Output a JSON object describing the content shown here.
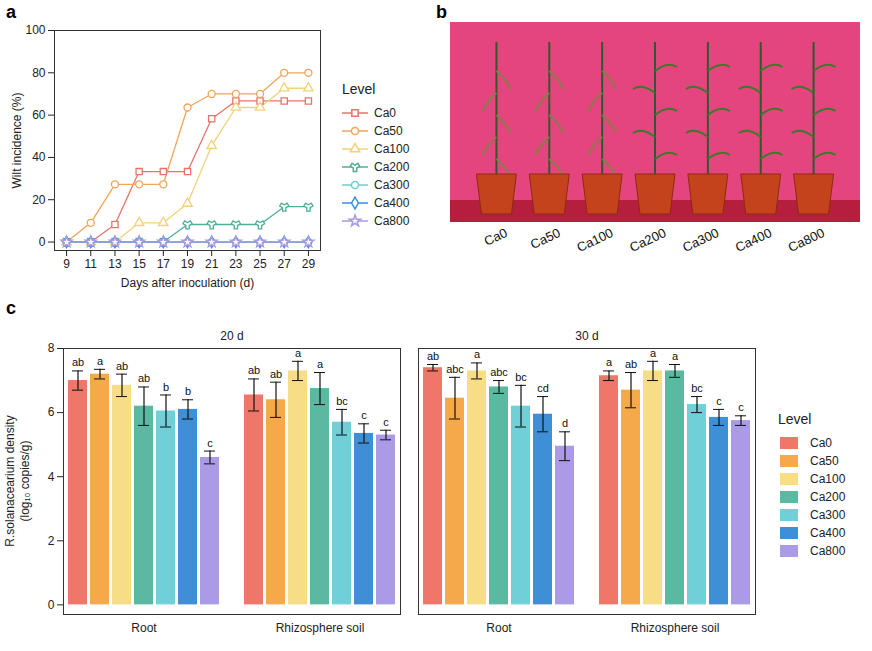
{
  "chart_data": [
    {
      "type": "line",
      "panel": "a",
      "xlabel": "Days after inoculation (d)",
      "ylabel": "Wilt incidence (%)",
      "x": [
        9,
        11,
        13,
        15,
        17,
        19,
        21,
        23,
        25,
        27,
        29
      ],
      "xlim": [
        8,
        30
      ],
      "xticks": [
        9,
        11,
        13,
        15,
        17,
        19,
        21,
        23,
        25,
        27,
        29
      ],
      "ylim": [
        -4,
        100
      ],
      "yticks": [
        0,
        20,
        40,
        60,
        80,
        100
      ],
      "legend": "right",
      "legend_title": "Level",
      "series": [
        {
          "name": "Ca0",
          "color": "#e8736b",
          "marker": "square",
          "values": [
            0,
            0,
            8.3,
            33.3,
            33.3,
            33.3,
            58.3,
            66.7,
            66.7,
            66.7,
            66.7
          ]
        },
        {
          "name": "Ca50",
          "color": "#f0a55a",
          "marker": "circle",
          "values": [
            0,
            9.1,
            27.3,
            27.3,
            27.3,
            63.6,
            70,
            70,
            70,
            80,
            80
          ]
        },
        {
          "name": "Ca100",
          "color": "#f2d27a",
          "marker": "triangle",
          "values": [
            0,
            0,
            0,
            9.1,
            9.1,
            18.2,
            45.5,
            63.6,
            63.6,
            72.7,
            72.7
          ]
        },
        {
          "name": "Ca200",
          "color": "#4fae96",
          "marker": "wye",
          "values": [
            0,
            0,
            0,
            0,
            0,
            8.3,
            8.3,
            8.3,
            8.3,
            16.7,
            16.7
          ]
        },
        {
          "name": "Ca300",
          "color": "#6fcdd3",
          "marker": "circle",
          "values": [
            0,
            0,
            0,
            0,
            0,
            0,
            0,
            0,
            0,
            0,
            0
          ]
        },
        {
          "name": "Ca400",
          "color": "#3f8fd6",
          "marker": "diamond",
          "values": [
            0,
            0,
            0,
            0,
            0,
            0,
            0,
            0,
            0,
            0,
            0
          ]
        },
        {
          "name": "Ca800",
          "color": "#a99ae3",
          "marker": "star",
          "values": [
            0,
            0,
            0,
            0,
            0,
            0,
            0,
            0,
            0,
            0,
            0
          ]
        }
      ]
    },
    {
      "type": "bar",
      "panel": "c",
      "ylabel": "R.solanacearium density (log₁₀ copies/g)",
      "ylim": [
        -0.3,
        8
      ],
      "yticks": [
        0,
        2,
        4,
        6,
        8
      ],
      "legend": "right",
      "legend_title": "Level",
      "panels": [
        {
          "title": "20 d",
          "categories": [
            "Root",
            "Rhizosphere soil"
          ],
          "series": [
            {
              "name": "Ca0",
              "color": "#f0766a",
              "values": [
                7.0,
                6.55
              ],
              "errors": [
                0.3,
                0.5
              ],
              "letters": [
                "ab",
                "ab"
              ]
            },
            {
              "name": "Ca50",
              "color": "#f5a94a",
              "values": [
                7.2,
                6.4
              ],
              "errors": [
                0.15,
                0.55
              ],
              "letters": [
                "a",
                "ab"
              ]
            },
            {
              "name": "Ca100",
              "color": "#f7dd86",
              "values": [
                6.85,
                7.3
              ],
              "errors": [
                0.35,
                0.3
              ],
              "letters": [
                "ab",
                "a"
              ]
            },
            {
              "name": "Ca200",
              "color": "#5ab9a0",
              "values": [
                6.2,
                6.75
              ],
              "errors": [
                0.6,
                0.5
              ],
              "letters": [
                "ab",
                "a"
              ]
            },
            {
              "name": "Ca300",
              "color": "#6fd0d8",
              "values": [
                6.05,
                5.7
              ],
              "errors": [
                0.5,
                0.4
              ],
              "letters": [
                "b",
                "bc"
              ]
            },
            {
              "name": "Ca400",
              "color": "#3f8fd6",
              "values": [
                6.1,
                5.35
              ],
              "errors": [
                0.3,
                0.3
              ],
              "letters": [
                "b",
                "c"
              ]
            },
            {
              "name": "Ca800",
              "color": "#ab9be6",
              "values": [
                4.6,
                5.3
              ],
              "errors": [
                0.2,
                0.15
              ],
              "letters": [
                "c",
                "c"
              ]
            }
          ]
        },
        {
          "title": "30 d",
          "categories": [
            "Root",
            "Rhizosphere soil"
          ],
          "series": [
            {
              "name": "Ca0",
              "color": "#f0766a",
              "values": [
                7.4,
                7.15
              ],
              "errors": [
                0.1,
                0.15
              ],
              "letters": [
                "ab",
                "a"
              ]
            },
            {
              "name": "Ca50",
              "color": "#f5a94a",
              "values": [
                6.45,
                6.7
              ],
              "errors": [
                0.65,
                0.55
              ],
              "letters": [
                "abc",
                "ab"
              ]
            },
            {
              "name": "Ca100",
              "color": "#f7dd86",
              "values": [
                7.3,
                7.3
              ],
              "errors": [
                0.25,
                0.3
              ],
              "letters": [
                "a",
                "a"
              ]
            },
            {
              "name": "Ca200",
              "color": "#5ab9a0",
              "values": [
                6.8,
                7.3
              ],
              "errors": [
                0.2,
                0.2
              ],
              "letters": [
                "abc",
                "a"
              ]
            },
            {
              "name": "Ca300",
              "color": "#6fd0d8",
              "values": [
                6.2,
                6.25
              ],
              "errors": [
                0.65,
                0.25
              ],
              "letters": [
                "bc",
                "bc"
              ]
            },
            {
              "name": "Ca400",
              "color": "#3f8fd6",
              "values": [
                5.95,
                5.85
              ],
              "errors": [
                0.55,
                0.25
              ],
              "letters": [
                "cd",
                "c"
              ]
            },
            {
              "name": "Ca800",
              "color": "#ab9be6",
              "values": [
                4.95,
                5.75
              ],
              "errors": [
                0.45,
                0.15
              ],
              "letters": [
                "d",
                "c"
              ]
            }
          ]
        }
      ]
    }
  ],
  "photo": {
    "panel": "b",
    "labels": [
      "Ca0",
      "Ca50",
      "Ca100",
      "Ca200",
      "Ca300",
      "Ca400",
      "Ca800"
    ]
  }
}
